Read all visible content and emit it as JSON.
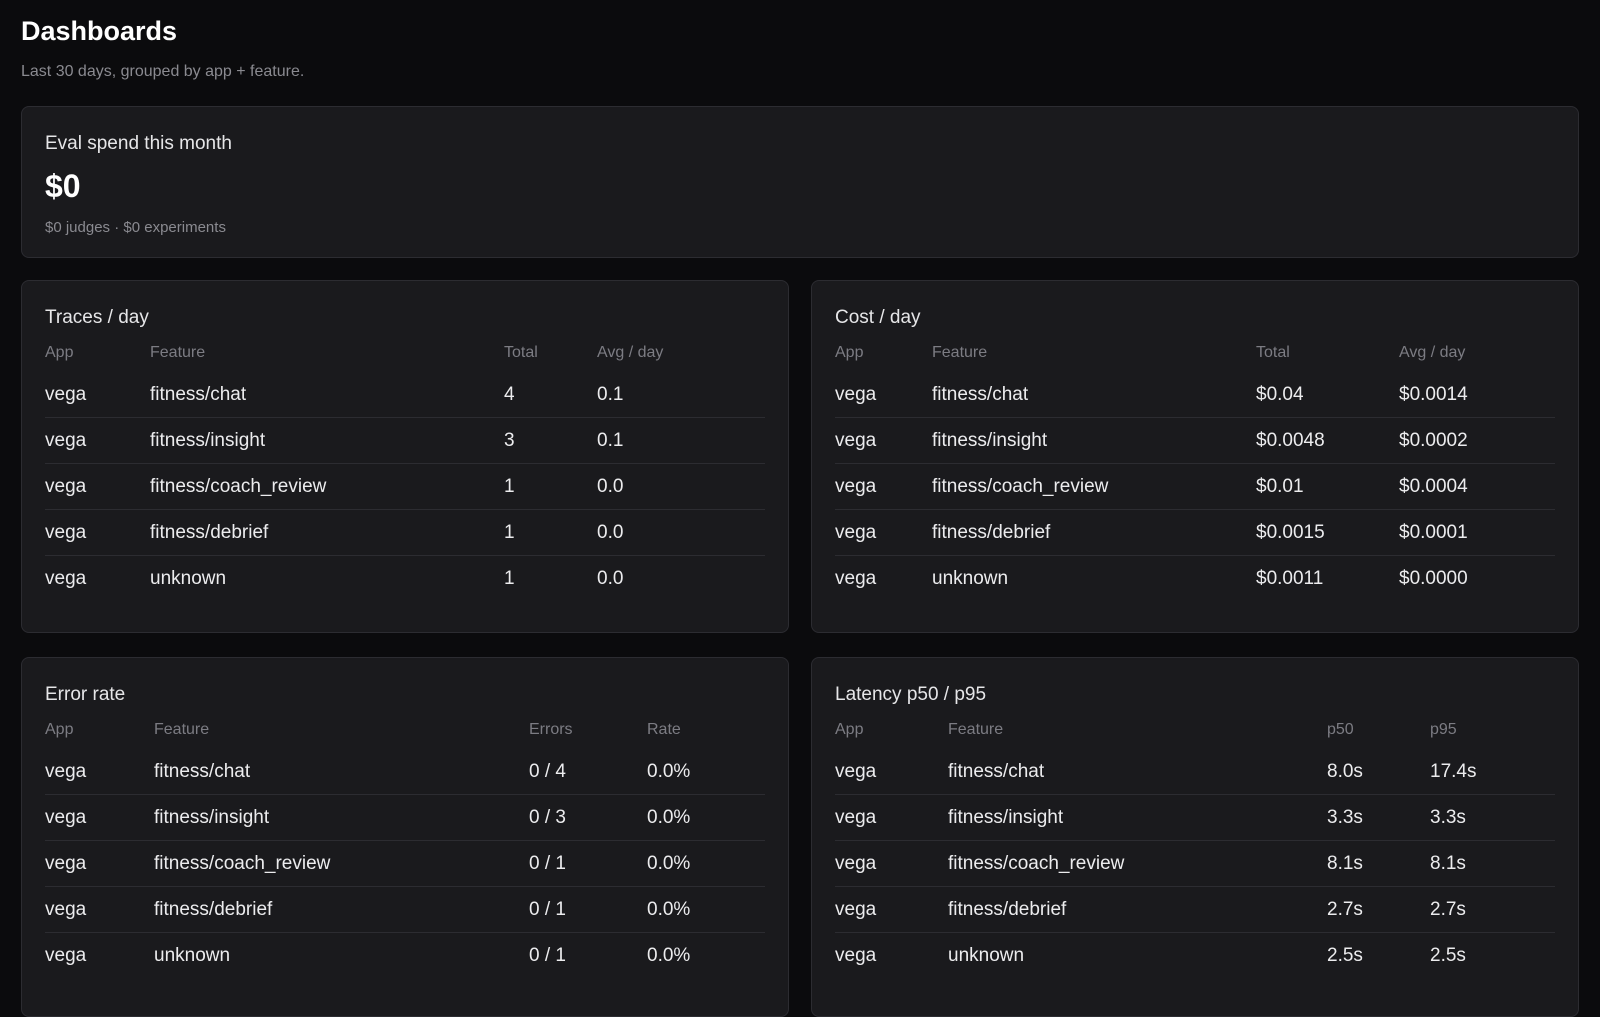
{
  "header": {
    "title": "Dashboards",
    "subtitle": "Last 30 days, grouped by app + feature."
  },
  "spend": {
    "label": "Eval spend this month",
    "value": "$0",
    "breakdown": "$0 judges · $0 experiments"
  },
  "traces": {
    "title": "Traces / day",
    "columns": [
      "App",
      "Feature",
      "Total",
      "Avg / day"
    ],
    "rows": [
      [
        "vega",
        "fitness/chat",
        "4",
        "0.1"
      ],
      [
        "vega",
        "fitness/insight",
        "3",
        "0.1"
      ],
      [
        "vega",
        "fitness/coach_review",
        "1",
        "0.0"
      ],
      [
        "vega",
        "fitness/debrief",
        "1",
        "0.0"
      ],
      [
        "vega",
        "unknown",
        "1",
        "0.0"
      ]
    ]
  },
  "cost": {
    "title": "Cost / day",
    "columns": [
      "App",
      "Feature",
      "Total",
      "Avg / day"
    ],
    "rows": [
      [
        "vega",
        "fitness/chat",
        "$0.04",
        "$0.0014"
      ],
      [
        "vega",
        "fitness/insight",
        "$0.0048",
        "$0.0002"
      ],
      [
        "vega",
        "fitness/coach_review",
        "$0.01",
        "$0.0004"
      ],
      [
        "vega",
        "fitness/debrief",
        "$0.0015",
        "$0.0001"
      ],
      [
        "vega",
        "unknown",
        "$0.0011",
        "$0.0000"
      ]
    ]
  },
  "errors": {
    "title": "Error rate",
    "columns": [
      "App",
      "Feature",
      "Errors",
      "Rate"
    ],
    "rows": [
      [
        "vega",
        "fitness/chat",
        "0 / 4",
        "0.0%"
      ],
      [
        "vega",
        "fitness/insight",
        "0 / 3",
        "0.0%"
      ],
      [
        "vega",
        "fitness/coach_review",
        "0 / 1",
        "0.0%"
      ],
      [
        "vega",
        "fitness/debrief",
        "0 / 1",
        "0.0%"
      ],
      [
        "vega",
        "unknown",
        "0 / 1",
        "0.0%"
      ]
    ]
  },
  "latency": {
    "title": "Latency p50 / p95",
    "columns": [
      "App",
      "Feature",
      "p50",
      "p95"
    ],
    "rows": [
      [
        "vega",
        "fitness/chat",
        "8.0s",
        "17.4s"
      ],
      [
        "vega",
        "fitness/insight",
        "3.3s",
        "3.3s"
      ],
      [
        "vega",
        "fitness/coach_review",
        "8.1s",
        "8.1s"
      ],
      [
        "vega",
        "fitness/debrief",
        "2.7s",
        "2.7s"
      ],
      [
        "vega",
        "unknown",
        "2.5s",
        "2.5s"
      ]
    ]
  }
}
